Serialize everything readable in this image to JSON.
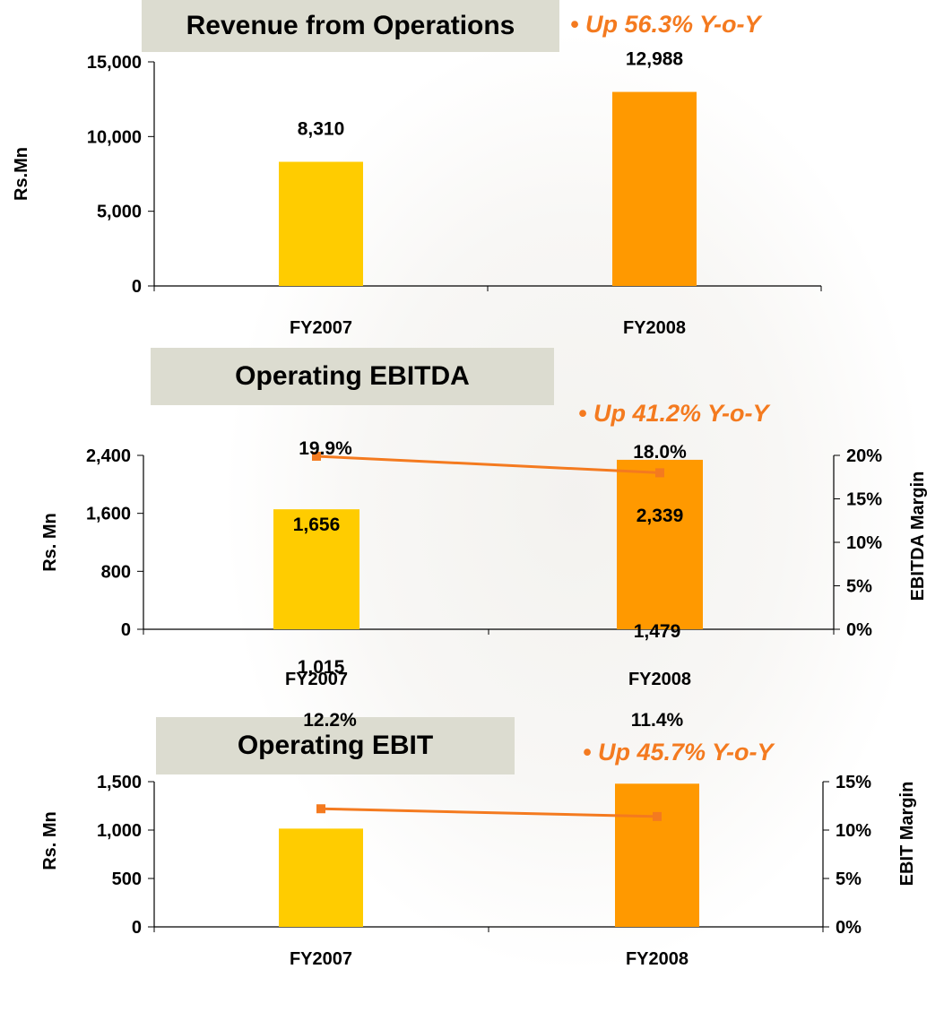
{
  "chart_data": [
    {
      "type": "bar",
      "title": "Revenue from Operations",
      "annotation": "• Up 56.3% Y-o-Y",
      "ylabel": "Rs.Mn",
      "categories": [
        "FY2007",
        "FY2008"
      ],
      "values": [
        8310,
        12988
      ],
      "value_labels": [
        "8,310",
        "12,988"
      ],
      "ylim": [
        0,
        15000
      ],
      "yticks": [
        0,
        5000,
        10000,
        15000
      ],
      "ytick_labels": [
        "0",
        "5,000",
        "10,000",
        "15,000"
      ],
      "colors": [
        "#ffcc00",
        "#ff9900"
      ]
    },
    {
      "type": "bar",
      "title": "Operating EBITDA",
      "annotation": "• Up 41.2% Y-o-Y",
      "ylabel": "Rs. Mn",
      "y2label": "EBITDA Margin",
      "categories": [
        "FY2007",
        "FY2008"
      ],
      "values": [
        1656,
        2339
      ],
      "value_labels": [
        "1,656",
        "2,339"
      ],
      "ylim": [
        0,
        2400
      ],
      "yticks": [
        0,
        800,
        1600,
        2400
      ],
      "ytick_labels": [
        "0",
        "800",
        "1,600",
        "2,400"
      ],
      "line": {
        "name": "",
        "values": [
          19.9,
          18.0
        ],
        "labels": [
          "19.9%",
          "18.0%"
        ],
        "color": "#f47a1f"
      },
      "y2lim": [
        0,
        20
      ],
      "y2ticks": [
        0,
        5,
        10,
        15,
        20
      ],
      "y2tick_labels": [
        "0%",
        "5%",
        "10%",
        "15%",
        "20%"
      ],
      "colors": [
        "#ffcc00",
        "#ff9900"
      ]
    },
    {
      "type": "bar",
      "title": "Operating EBIT",
      "annotation": "• Up 45.7% Y-o-Y",
      "ylabel": "Rs. Mn",
      "y2label": "EBIT Margin",
      "categories": [
        "FY2007",
        "FY2008"
      ],
      "values": [
        1015,
        1479
      ],
      "value_labels": [
        "1,015",
        "1,479"
      ],
      "ylim": [
        0,
        1500
      ],
      "yticks": [
        0,
        500,
        1000,
        1500
      ],
      "ytick_labels": [
        "0",
        "500",
        "1,000",
        "1,500"
      ],
      "line": {
        "name": "",
        "values": [
          12.2,
          11.4
        ],
        "labels": [
          "12.2%",
          "11.4%"
        ],
        "color": "#f47a1f"
      },
      "y2lim": [
        0,
        15
      ],
      "y2ticks": [
        0,
        5,
        10,
        15
      ],
      "y2tick_labels": [
        "0%",
        "5%",
        "10%",
        "15%"
      ],
      "colors": [
        "#ffcc00",
        "#ff9900"
      ]
    }
  ]
}
